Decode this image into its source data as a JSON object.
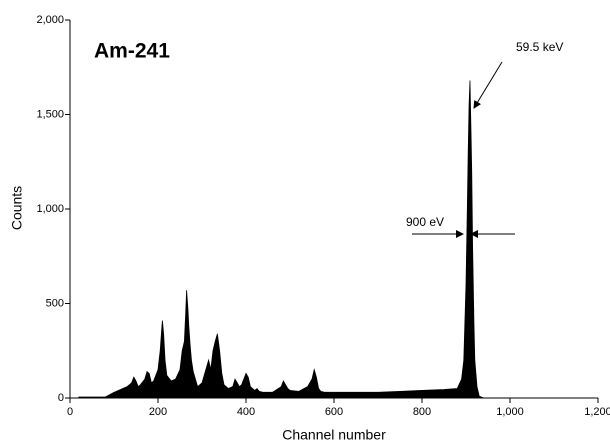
{
  "chart_data": {
    "type": "area",
    "title": "Am-241",
    "x_label": "Channel number",
    "y_label": "Counts",
    "annotations": [
      "59.5 keV",
      "900 eV"
    ],
    "color": "#000000",
    "x": [
      20,
      40,
      60,
      80,
      100,
      110,
      120,
      130,
      140,
      145,
      150,
      155,
      160,
      170,
      175,
      180,
      185,
      190,
      200,
      205,
      208,
      210,
      213,
      216,
      220,
      230,
      240,
      250,
      255,
      260,
      263,
      265,
      268,
      270,
      273,
      276,
      280,
      290,
      300,
      310,
      315,
      320,
      325,
      330,
      335,
      340,
      345,
      350,
      360,
      370,
      375,
      380,
      385,
      390,
      395,
      400,
      405,
      410,
      420,
      425,
      430,
      440,
      460,
      480,
      485,
      490,
      495,
      500,
      520,
      540,
      550,
      555,
      560,
      565,
      570,
      580,
      600,
      650,
      700,
      750,
      800,
      850,
      880,
      890,
      895,
      900,
      903,
      905,
      907,
      909,
      911,
      913,
      915,
      918,
      920,
      925,
      930,
      940,
      1000,
      1100,
      1200
    ],
    "values": [
      5,
      5,
      5,
      5,
      30,
      40,
      50,
      60,
      80,
      110,
      90,
      60,
      70,
      100,
      140,
      130,
      80,
      90,
      150,
      250,
      350,
      410,
      330,
      200,
      120,
      90,
      100,
      150,
      250,
      300,
      450,
      570,
      470,
      380,
      280,
      200,
      140,
      60,
      80,
      160,
      200,
      150,
      250,
      300,
      340,
      250,
      130,
      70,
      50,
      60,
      100,
      80,
      60,
      70,
      100,
      130,
      110,
      60,
      40,
      50,
      35,
      30,
      30,
      60,
      90,
      70,
      50,
      40,
      35,
      60,
      100,
      150,
      110,
      50,
      35,
      30,
      30,
      30,
      30,
      35,
      40,
      45,
      50,
      100,
      200,
      600,
      1000,
      1300,
      1550,
      1680,
      1450,
      1200,
      800,
      400,
      200,
      60,
      10,
      0,
      0,
      0,
      0
    ],
    "xlim": [
      0,
      1200
    ],
    "ylim": [
      0,
      2000
    ],
    "xticks": [
      0,
      200,
      400,
      600,
      800,
      {
        "value": 1000,
        "label": "1,000"
      },
      {
        "value": 1200,
        "label": "1,200"
      }
    ],
    "yticks": [
      0,
      500,
      {
        "value": 1000,
        "label": "1,000"
      },
      {
        "value": 1500,
        "label": "1,500"
      },
      {
        "value": 2000,
        "label": "2,000"
      }
    ],
    "grid": false
  }
}
